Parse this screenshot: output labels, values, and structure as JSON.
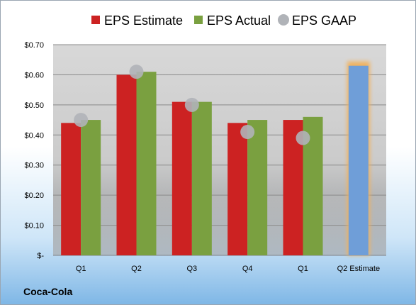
{
  "company": "Coca-Cola",
  "colors": {
    "estimate": "#cc2222",
    "actual": "#7aa040",
    "gaap": "#b0b3b8",
    "future_estimate": "#6f9ed8",
    "highlight": "#f2b15a"
  },
  "chart_data": {
    "type": "bar",
    "categories": [
      "Q1",
      "Q2",
      "Q3",
      "Q4",
      "Q1",
      "Q2 Estimate"
    ],
    "series": [
      {
        "name": "EPS Estimate",
        "values": [
          0.44,
          0.6,
          0.51,
          0.44,
          0.45,
          null
        ]
      },
      {
        "name": "EPS Actual",
        "values": [
          0.45,
          0.61,
          0.51,
          0.45,
          0.46,
          0.63
        ]
      },
      {
        "name": "EPS GAAP",
        "values": [
          0.45,
          0.61,
          0.5,
          0.41,
          0.39,
          null
        ]
      }
    ],
    "highlighted_category": "Q2 Estimate",
    "ylim": [
      0,
      0.7
    ],
    "yticks": [
      0,
      0.1,
      0.2,
      0.3,
      0.4,
      0.5,
      0.6,
      0.7
    ],
    "ytick_labels": [
      "$-",
      "$0.10",
      "$0.20",
      "$0.30",
      "$0.40",
      "$0.50",
      "$0.60",
      "$0.70"
    ],
    "grid": true,
    "legend_position": "top"
  }
}
